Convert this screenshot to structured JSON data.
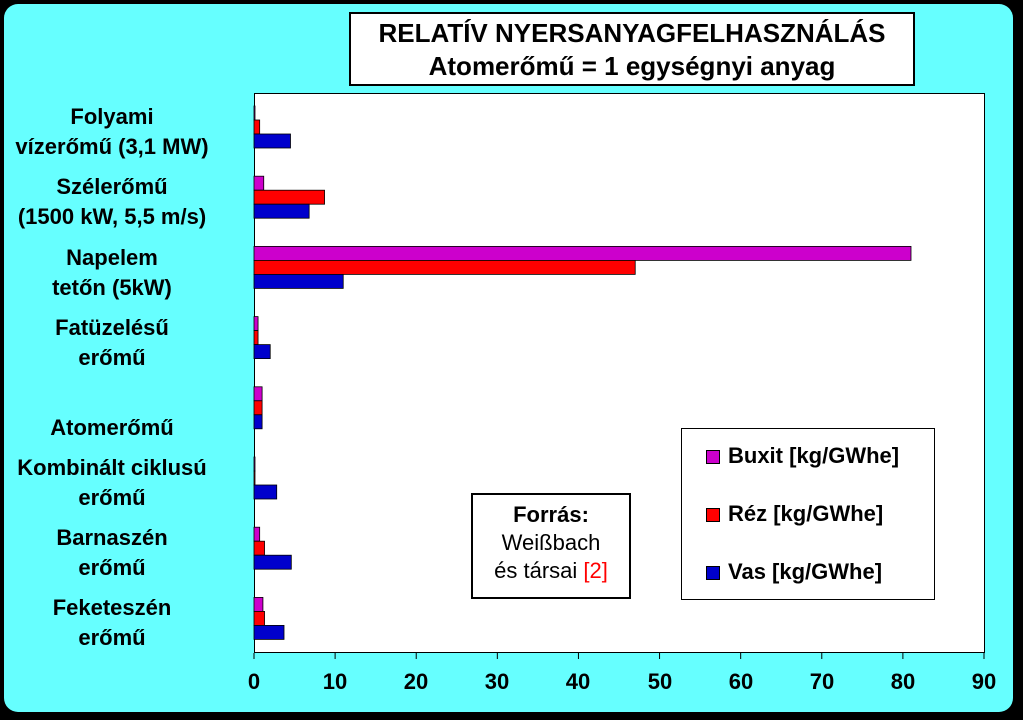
{
  "chart_data": {
    "type": "bar",
    "orientation": "horizontal",
    "title": "RELATÍV NYERSANYAGFELHASZNÁLÁS",
    "subtitle": "Atomerőmű = 1 egységnyi anyag",
    "categories": [
      [
        "Folyami",
        "vízerőmű (3,1 MW)"
      ],
      [
        "Szélerőmű",
        "(1500 kW, 5,5 m/s)"
      ],
      [
        "Napelem",
        "tetőn (5kW)"
      ],
      [
        "Fatüzelésű",
        "erőmű"
      ],
      [
        "",
        "Atomerőmű"
      ],
      [
        "Kombinált ciklusú",
        "erőmű"
      ],
      [
        "Barnaszén",
        "erőmű"
      ],
      [
        "Feketeszén",
        "erőmű"
      ]
    ],
    "series": [
      {
        "name": "Buxit [kg/GWhe]",
        "color": "#cc00cc",
        "values": [
          0.1,
          1.2,
          81,
          0.5,
          1,
          0.1,
          0.7,
          1.1
        ]
      },
      {
        "name": "Réz [kg/GWhe]",
        "color": "#ff0000",
        "values": [
          0.7,
          8.7,
          47,
          0.5,
          1,
          0.1,
          1.3,
          1.3
        ]
      },
      {
        "name": "Vas [kg/GWhe]",
        "color": "#0000cc",
        "values": [
          4.5,
          6.8,
          11,
          2,
          1,
          2.8,
          4.6,
          3.7
        ]
      }
    ],
    "xlim": [
      0,
      90
    ],
    "xticks": [
      "0",
      "10",
      "20",
      "30",
      "40",
      "50",
      "60",
      "70",
      "80",
      "90"
    ],
    "grid": false,
    "legend": "bottom-right"
  },
  "source": {
    "heading": "Forrás:",
    "line1": "Weißbach",
    "line2": "és társai",
    "ref": "[2]",
    "ref_color": "#ff0000"
  },
  "colors": {
    "background": "#66ffff",
    "frame": "#000000"
  }
}
